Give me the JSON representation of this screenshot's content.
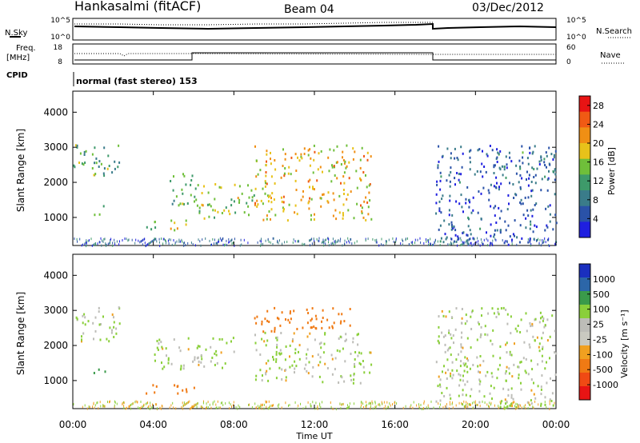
{
  "header": {
    "station": "Hankasalmi (fitACF)",
    "beam": "Beam 04",
    "date": "03/Dec/2012"
  },
  "noise_panel": {
    "left_label": "N.Sky",
    "right_label": "N.Search",
    "left_ticks": [
      "10^5",
      "10^0"
    ],
    "right_ticks": [
      "10^5",
      "10^0"
    ]
  },
  "freq_panel": {
    "left_label_1": "Freq.",
    "left_label_2": "[MHz]",
    "right_label": "Nave",
    "left_ticks": [
      "18",
      "8"
    ],
    "right_ticks": [
      "60",
      "0"
    ]
  },
  "cpid": {
    "label": "CPID",
    "value": "normal (fast stereo) 153"
  },
  "colors": {
    "power_scale": [
      "#1f1fe0",
      "#2a52a8",
      "#3a7c8a",
      "#3e9a6a",
      "#6fbf3a",
      "#e8c21a",
      "#f08f14",
      "#f05a14",
      "#e81414"
    ],
    "velocity_scale": [
      "#1a2fbf",
      "#2c66a8",
      "#3a9a4a",
      "#8acf3a",
      "#bdbdb8",
      "#c9c9c0",
      "#f0a020",
      "#f07a14",
      "#f04a14",
      "#e81414"
    ]
  },
  "chart_data": [
    {
      "type": "heatmap",
      "panel": "power",
      "ylabel": "Slant Range [km]",
      "yticks": [
        "1000",
        "2000",
        "3000",
        "4000"
      ],
      "ylim": [
        200,
        4600
      ],
      "colorbar_label": "Power [dB]",
      "colorbar_ticks": [
        "4",
        "8",
        "12",
        "16",
        "20",
        "24",
        "28"
      ],
      "colorbar_range": [
        0,
        30
      ],
      "regions": [
        {
          "t0": 0.0,
          "t1": 2.3,
          "r0": 2150,
          "r1": 3150,
          "level": 12
        },
        {
          "t0": 1.0,
          "t1": 1.6,
          "r0": 1100,
          "r1": 1400,
          "level": 16
        },
        {
          "t0": 4.8,
          "t1": 6.2,
          "r0": 1350,
          "r1": 2300,
          "level": 12
        },
        {
          "t0": 6.0,
          "t1": 9.0,
          "r0": 1000,
          "r1": 2000,
          "level": 16
        },
        {
          "t0": 9.0,
          "t1": 14.8,
          "r0": 950,
          "r1": 3100,
          "level": 20
        },
        {
          "t0": 3.6,
          "t1": 6.0,
          "r0": 650,
          "r1": 950,
          "level": 16
        },
        {
          "t0": 18.0,
          "t1": 24.0,
          "r0": 250,
          "r1": 3100,
          "level": 4
        },
        {
          "t0": 21.0,
          "t1": 24.0,
          "r0": 2150,
          "r1": 2900,
          "level": 8
        }
      ]
    },
    {
      "type": "heatmap",
      "panel": "velocity",
      "ylabel": "Slant Range [km]",
      "yticks": [
        "1000",
        "2000",
        "3000",
        "4000"
      ],
      "ylim": [
        200,
        4600
      ],
      "xlabel": "Time UT",
      "xticks": [
        "00:00",
        "04:00",
        "08:00",
        "12:00",
        "16:00",
        "20:00",
        "00:00"
      ],
      "xlim": [
        0,
        24
      ],
      "colorbar_label": "Velocity [m s⁻¹]",
      "colorbar_ticks": [
        "1000",
        "500",
        "100",
        "25",
        "-25",
        "-100",
        "-500",
        "-1000"
      ],
      "regions": [
        {
          "t0": 0.0,
          "t1": 2.3,
          "r0": 2150,
          "r1": 3150,
          "v": 0
        },
        {
          "t0": 1.0,
          "t1": 1.6,
          "r0": 1100,
          "r1": 1400,
          "v": 150
        },
        {
          "t0": 3.6,
          "t1": 6.0,
          "r0": 650,
          "r1": 950,
          "v": -300
        },
        {
          "t0": 4.0,
          "t1": 8.0,
          "r0": 1350,
          "r1": 2300,
          "v": 0
        },
        {
          "t0": 9.0,
          "t1": 14.8,
          "r0": 950,
          "r1": 2400,
          "v": 0
        },
        {
          "t0": 9.0,
          "t1": 14.0,
          "r0": 2400,
          "r1": 3100,
          "v": -150
        },
        {
          "t0": 18.0,
          "t1": 24.0,
          "r0": 250,
          "r1": 3100,
          "v": 0
        }
      ]
    }
  ]
}
